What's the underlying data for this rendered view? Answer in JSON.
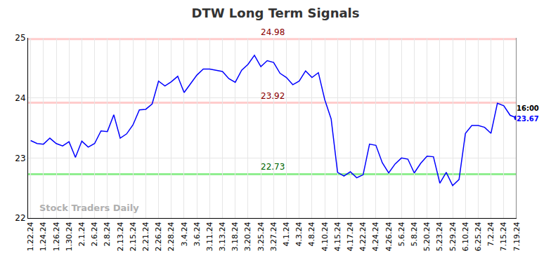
{
  "chart_data": {
    "type": "line",
    "title": "DTW Long Term Signals",
    "categories": [
      "1.22.24",
      null,
      "1.24.24",
      null,
      "1.26.24",
      null,
      "1.30.24",
      null,
      "2.1.24",
      null,
      "2.6.24",
      null,
      "2.8.24",
      null,
      "2.13.24",
      null,
      "2.15.24",
      null,
      "2.21.24",
      null,
      "2.26.24",
      null,
      "2.28.24",
      null,
      "3.4.24",
      null,
      "3.6.24",
      null,
      "3.11.24",
      null,
      "3.13.24",
      null,
      "3.18.24",
      null,
      "3.20.24",
      null,
      "3.25.24",
      null,
      "3.27.24",
      null,
      "4.1.24",
      null,
      "4.3.24",
      null,
      "4.8.24",
      null,
      "4.10.24",
      null,
      "4.15.24",
      null,
      "4.17.24",
      null,
      "4.22.24",
      null,
      "4.24.24",
      null,
      "4.26.24",
      null,
      "5.6.24",
      null,
      "5.8.24",
      null,
      "5.20.24",
      null,
      "5.23.24",
      null,
      "5.29.24",
      null,
      "6.10.24",
      null,
      "6.25.24",
      null,
      "7.2.24",
      null,
      "7.15.24",
      null,
      "7.19.24"
    ],
    "values": [
      23.29,
      23.24,
      23.23,
      23.33,
      23.24,
      23.2,
      23.27,
      23.01,
      23.28,
      23.18,
      23.24,
      23.45,
      23.44,
      23.72,
      23.33,
      23.4,
      23.55,
      23.8,
      23.81,
      23.9,
      24.28,
      24.2,
      24.27,
      24.36,
      24.09,
      24.24,
      24.38,
      24.48,
      24.48,
      24.46,
      24.44,
      24.32,
      24.26,
      24.46,
      24.56,
      24.71,
      24.52,
      24.62,
      24.59,
      24.41,
      24.34,
      24.22,
      24.28,
      24.45,
      24.34,
      24.42,
      23.97,
      23.65,
      22.76,
      22.7,
      22.77,
      22.67,
      22.72,
      23.23,
      23.21,
      22.92,
      22.75,
      22.9,
      23.0,
      22.98,
      22.75,
      22.91,
      23.03,
      23.02,
      22.58,
      22.76,
      22.54,
      22.64,
      23.41,
      23.54,
      23.54,
      23.51,
      23.41,
      23.91,
      23.87,
      23.71,
      23.67
    ],
    "color": "#0000ff",
    "ylim": [
      22,
      25
    ],
    "yticks": [
      22,
      23,
      24,
      25
    ],
    "grid": true,
    "horizontal_lines": [
      {
        "value": 24.98,
        "label": "24.98",
        "color": "#ffcccc",
        "label_color": "#8b0000"
      },
      {
        "value": 23.92,
        "label": "23.92",
        "color": "#ffcccc",
        "label_color": "#8b0000"
      },
      {
        "value": 22.73,
        "label": "22.73",
        "color": "#90ee90",
        "label_color": "#006400"
      }
    ],
    "last_point_labels": [
      {
        "text": "16:00",
        "color": "#000000"
      },
      {
        "text": "23.67",
        "color": "#0000ff"
      }
    ],
    "watermark": "Stock Traders Daily"
  }
}
